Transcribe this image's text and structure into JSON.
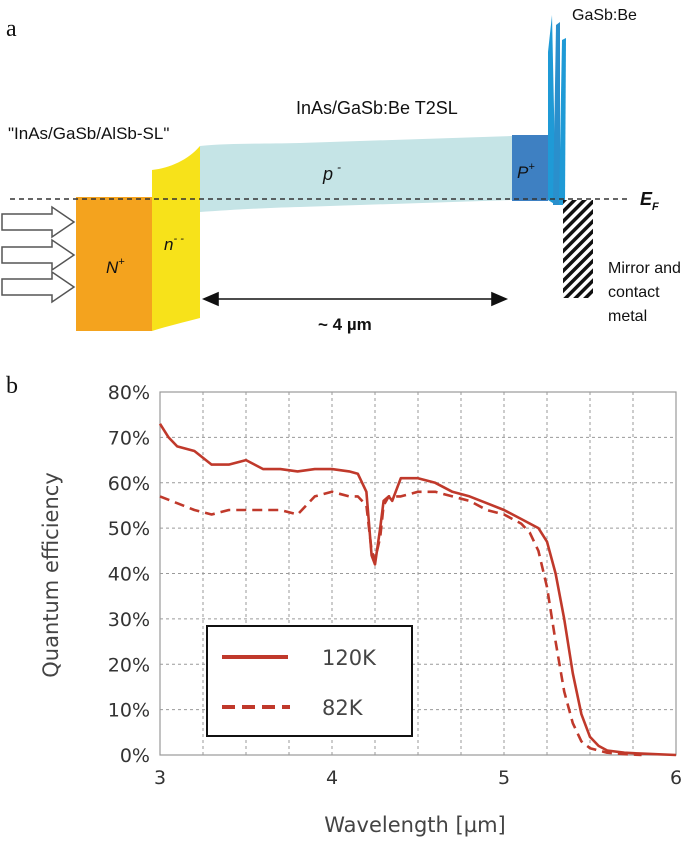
{
  "panel_a": {
    "panel_label": "a",
    "superlattice_label": "\"InAs/GaSb/AlSb-SL\"",
    "t2sl_label": "InAs/GaSb:Be T2SL",
    "gasb_label": "GaSb:Be",
    "n_plus": "N",
    "n_plus_sup": "+",
    "n_minus": "n",
    "n_minus_sup": "- -",
    "p_minus": "p",
    "p_minus_sup": "-",
    "p_plus": "P",
    "p_plus_sup": "+",
    "fermi": "E",
    "fermi_sub": "F",
    "thickness": "~ 4 µm",
    "mirror_line1": "Mirror and",
    "mirror_line2": "contact",
    "mirror_line3": "metal",
    "colors": {
      "n_plus": "#F4A31E",
      "n_minus": "#F7E21A",
      "p_minus": "#C5E4E6",
      "p_plus": "#3E80C2",
      "gasb": "#1F9AD6"
    }
  },
  "panel_b": {
    "panel_label": "b"
  },
  "chart_data": {
    "type": "line",
    "title": "",
    "xlabel": "Wavelength [µm]",
    "ylabel": "Quantum efficiency",
    "xlim": [
      3,
      6
    ],
    "ylim": [
      0,
      80
    ],
    "xticks": [
      3,
      4,
      5,
      6
    ],
    "yticks": [
      0,
      10,
      20,
      30,
      40,
      50,
      60,
      70,
      80
    ],
    "ytick_format": "percent",
    "grid": true,
    "legend_position": "lower-left",
    "color": "#C0392B",
    "series": [
      {
        "name": "120K",
        "style": "solid",
        "x": [
          3.0,
          3.05,
          3.1,
          3.2,
          3.3,
          3.4,
          3.5,
          3.6,
          3.7,
          3.8,
          3.9,
          4.0,
          4.1,
          4.15,
          4.2,
          4.23,
          4.25,
          4.28,
          4.3,
          4.33,
          4.35,
          4.4,
          4.5,
          4.6,
          4.7,
          4.8,
          4.9,
          5.0,
          5.1,
          5.2,
          5.25,
          5.3,
          5.35,
          5.4,
          5.45,
          5.5,
          5.55,
          5.6,
          5.7,
          5.8,
          6.0
        ],
        "y": [
          73,
          70,
          68,
          67,
          64,
          64,
          65,
          63,
          63,
          62.5,
          63,
          63,
          62.5,
          62,
          58,
          44,
          42,
          50,
          56,
          57,
          56,
          61,
          61,
          60,
          58,
          57,
          55.5,
          54,
          52,
          50,
          47,
          40,
          30,
          18,
          9,
          4,
          2,
          1,
          0.5,
          0.3,
          0
        ]
      },
      {
        "name": "82K",
        "style": "dashed",
        "x": [
          3.0,
          3.1,
          3.2,
          3.3,
          3.4,
          3.5,
          3.6,
          3.7,
          3.8,
          3.9,
          4.0,
          4.1,
          4.15,
          4.2,
          4.23,
          4.25,
          4.28,
          4.3,
          4.33,
          4.35,
          4.4,
          4.5,
          4.6,
          4.7,
          4.8,
          4.9,
          5.0,
          5.1,
          5.15,
          5.2,
          5.25,
          5.3,
          5.35,
          5.4,
          5.45,
          5.5,
          5.6,
          5.7,
          5.8
        ],
        "y": [
          57,
          55.5,
          54,
          53,
          54,
          54,
          54,
          54,
          53,
          57,
          58,
          57,
          57,
          55,
          45,
          43,
          48,
          55,
          57,
          57,
          57,
          58,
          58,
          57,
          56,
          54,
          53,
          51,
          49,
          45,
          37,
          25,
          14,
          7,
          3,
          1.5,
          0.5,
          0.2,
          0
        ]
      }
    ]
  }
}
